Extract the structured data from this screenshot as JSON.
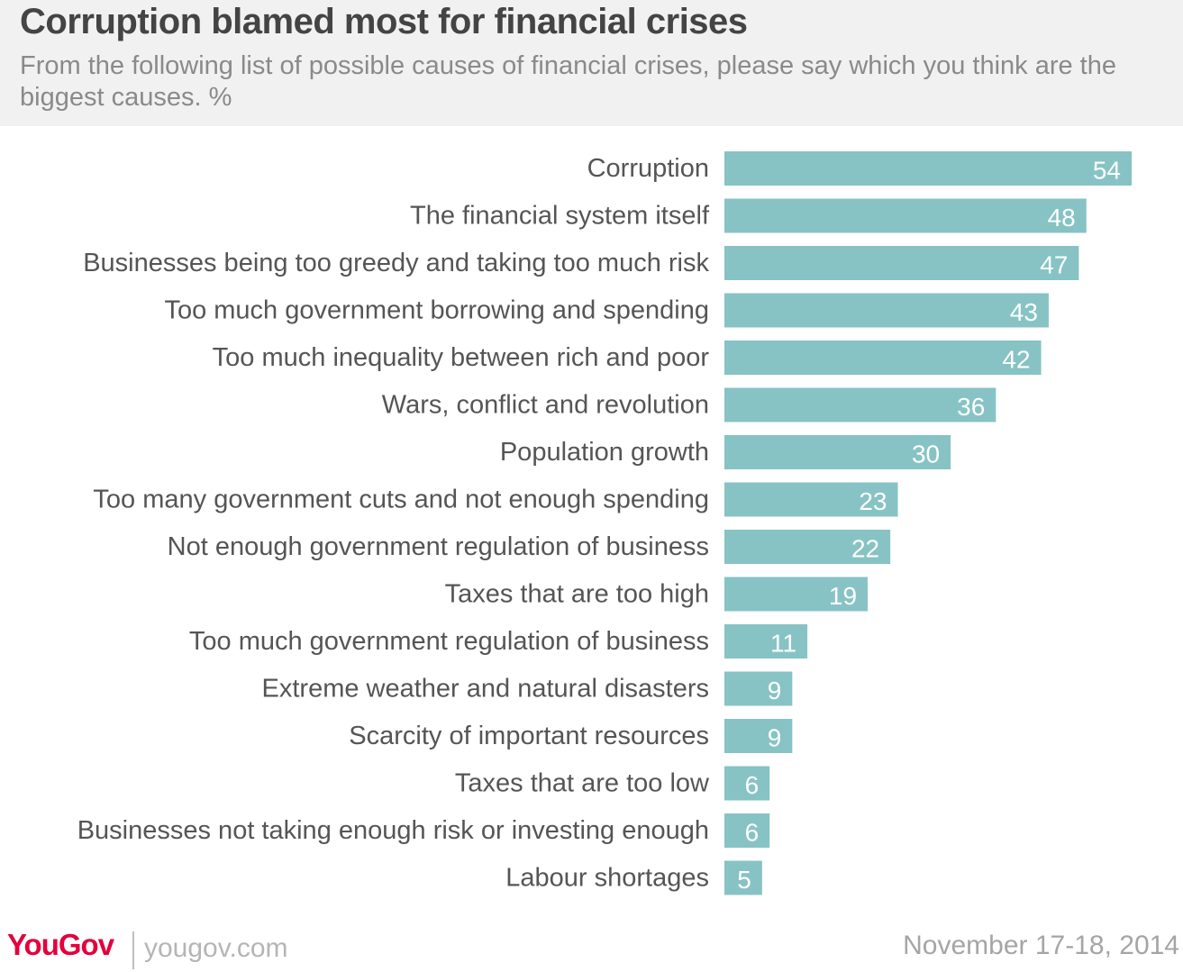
{
  "header": {
    "title": "Corruption blamed most for financial crises",
    "subtitle": "From the following list of possible causes of financial crises, please say which you think are the biggest causes. %"
  },
  "footer": {
    "brand": "YouGov",
    "url": "yougov.com",
    "date": "November 17-18, 2014"
  },
  "colors": {
    "bar": "#87c3c4",
    "label": "#555555",
    "value": "#ffffff",
    "brand": "#e4003b"
  },
  "chart_data": {
    "type": "bar",
    "orientation": "horizontal",
    "categories": [
      "Corruption",
      "The financial system itself",
      "Businesses being too greedy and taking too much risk",
      "Too much government borrowing and spending",
      "Too much inequality between rich and poor",
      "Wars, conflict and revolution",
      "Population growth",
      "Too many government cuts and not enough spending",
      "Not enough government regulation of business",
      "Taxes that are too high",
      "Too much government regulation of business",
      "Extreme weather and natural disasters",
      "Scarcity of important resources",
      "Taxes that are too low",
      "Businesses not taking enough risk or investing enough",
      "Labour shortages"
    ],
    "values": [
      54,
      48,
      47,
      43,
      42,
      36,
      30,
      23,
      22,
      19,
      11,
      9,
      9,
      6,
      6,
      5
    ],
    "value_labels": [
      "54",
      "48",
      "47",
      "43",
      "42",
      "36",
      "30",
      "23",
      "22",
      "19",
      "11",
      "9",
      "9",
      "6",
      "6",
      "5"
    ],
    "xlim": [
      0,
      54
    ],
    "grid": false,
    "legend": "none"
  }
}
